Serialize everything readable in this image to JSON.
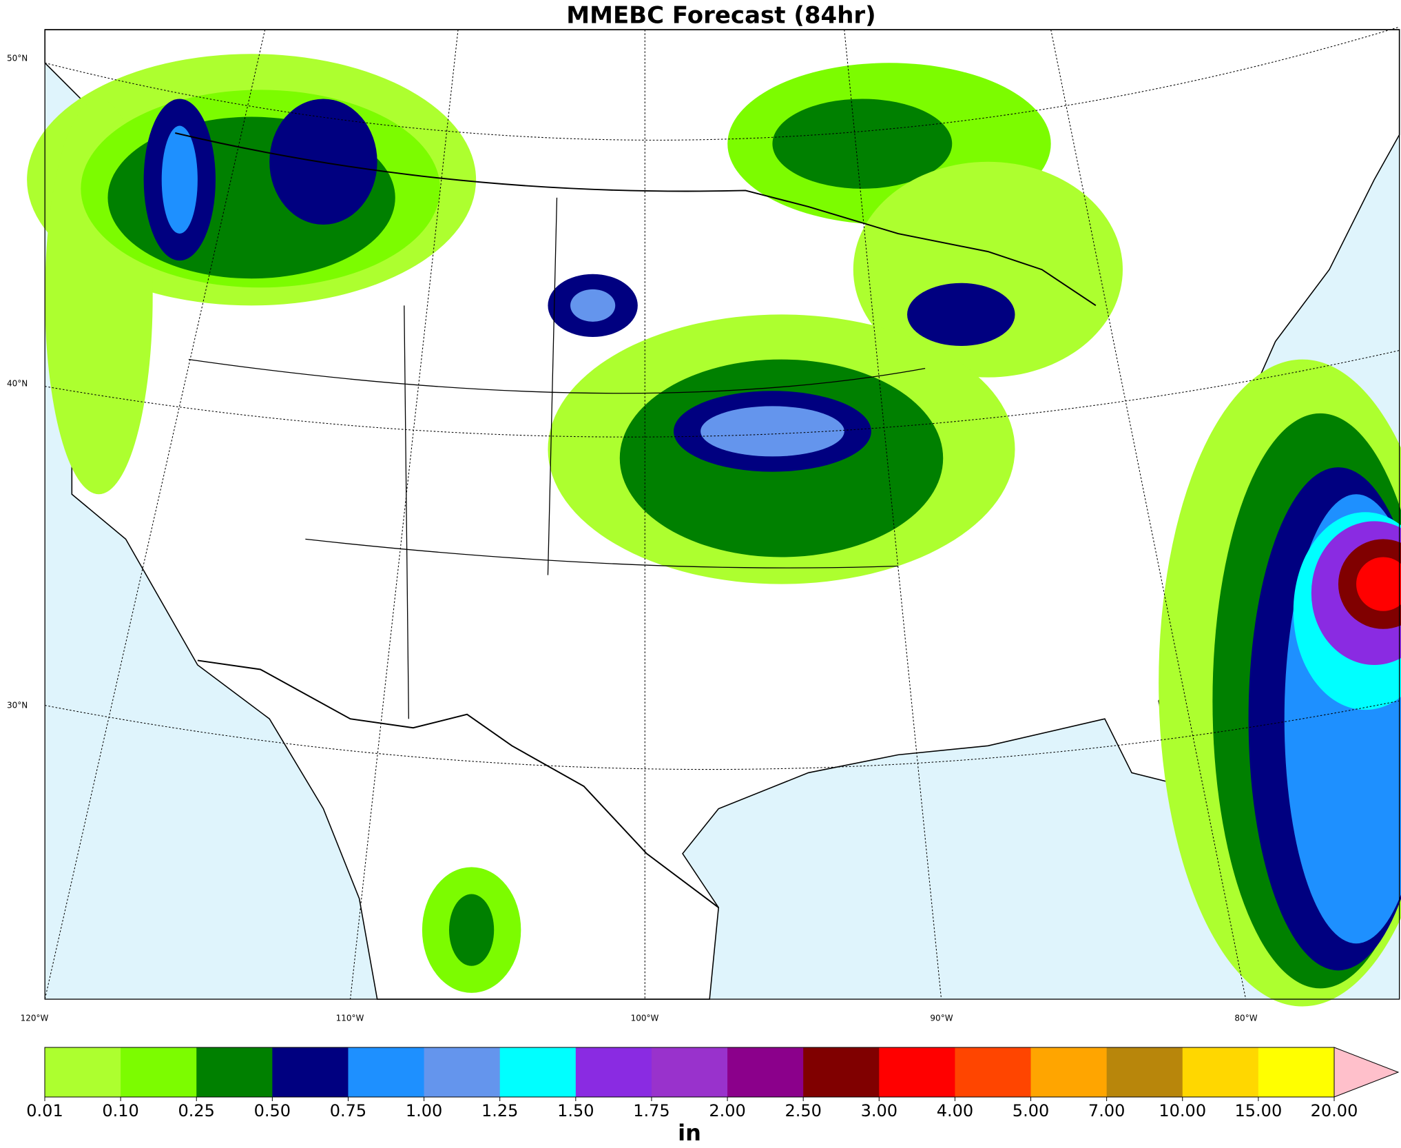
{
  "title": "MMEBC Forecast (84hr)",
  "latitude_labels": [
    "50°N",
    "40°N",
    "30°N"
  ],
  "longitude_labels": [
    "120°W",
    "110°W",
    "100°W",
    "90°W",
    "80°W"
  ],
  "colorbar": {
    "unit": "in",
    "levels": [
      {
        "value": 0.01,
        "label": "0.01"
      },
      {
        "value": 0.1,
        "label": "0.10"
      },
      {
        "value": 0.25,
        "label": "0.25"
      },
      {
        "value": 0.5,
        "label": "0.50"
      },
      {
        "value": 0.75,
        "label": "0.75"
      },
      {
        "value": 1,
        "label": "1.00"
      },
      {
        "value": 1.25,
        "label": "1.25"
      },
      {
        "value": 1.5,
        "label": "1.50"
      },
      {
        "value": 1.75,
        "label": "1.75"
      },
      {
        "value": 2,
        "label": "2.00"
      },
      {
        "value": 2.5,
        "label": "2.50"
      },
      {
        "value": 3,
        "label": "3.00"
      },
      {
        "value": 4,
        "label": "4.00"
      },
      {
        "value": 5,
        "label": "5.00"
      },
      {
        "value": 7,
        "label": "7.00"
      },
      {
        "value": 10,
        "label": "10.00"
      },
      {
        "value": 15,
        "label": "15.00"
      },
      {
        "value": 20,
        "label": "20.00"
      }
    ],
    "colors": [
      "#adff2f",
      "#7cfc00",
      "#008000",
      "#000080",
      "#1e90ff",
      "#6495ed",
      "#00ffff",
      "#8a2be2",
      "#9932cc",
      "#8b008b",
      "#800000",
      "#ff0000",
      "#ff4500",
      "#ffa500",
      "#b8860b",
      "#ffd700",
      "#ffff00"
    ],
    "extend_color": "#ffc0cb"
  }
}
